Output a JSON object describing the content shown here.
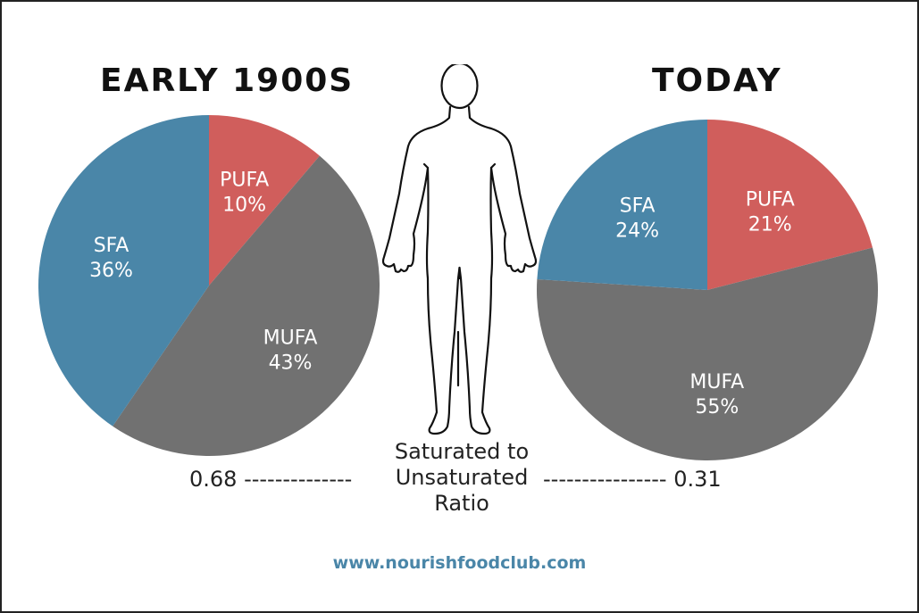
{
  "chart_data": [
    {
      "type": "pie",
      "title": "EARLY 1900S",
      "slices": [
        {
          "label": "PUFA",
          "value": 10,
          "display": "10%",
          "color": "#d05e5c"
        },
        {
          "label": "MUFA",
          "value": 43,
          "display": "43%",
          "color": "#717171"
        },
        {
          "label": "SFA",
          "value": 36,
          "display": "36%",
          "color": "#4a86a8"
        }
      ]
    },
    {
      "type": "pie",
      "title": "TODAY",
      "slices": [
        {
          "label": "PUFA",
          "value": 21,
          "display": "21%",
          "color": "#d05e5c"
        },
        {
          "label": "MUFA",
          "value": 55,
          "display": "55%",
          "color": "#717171"
        },
        {
          "label": "SFA",
          "value": 24,
          "display": "24%",
          "color": "#4a86a8"
        }
      ]
    }
  ],
  "ratio": {
    "label_lines": [
      "Saturated to",
      "Unsaturated",
      "Ratio"
    ],
    "left_text": "0.68 --------------",
    "right_text": "---------------- 0.31"
  },
  "footer": {
    "url": "www.nourishfoodclub.com"
  },
  "icons": {
    "center": "human-body-outline-icon"
  }
}
